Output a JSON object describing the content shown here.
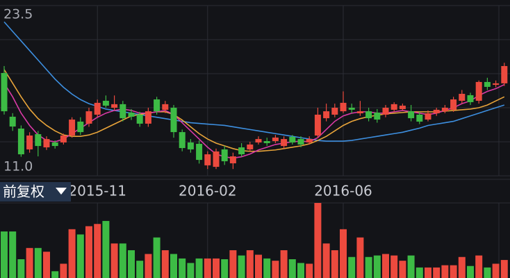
{
  "adjustment_label": "前复权",
  "chart_data": {
    "type": "candlestick",
    "categories": [
      null,
      null,
      null,
      null,
      null,
      null,
      null,
      null,
      null,
      null,
      null,
      "2015-11",
      null,
      null,
      null,
      null,
      null,
      null,
      null,
      null,
      null,
      null,
      null,
      null,
      "2016-02",
      null,
      null,
      null,
      null,
      null,
      null,
      null,
      null,
      null,
      null,
      null,
      null,
      null,
      null,
      null,
      "2016-06",
      null,
      null,
      null,
      null,
      null,
      null,
      null,
      null,
      null,
      null,
      null,
      null,
      null,
      null,
      null,
      null,
      null,
      null,
      null
    ],
    "open": [
      18.55,
      15.34,
      14.47,
      12.94,
      14.06,
      13.09,
      13.45,
      13.45,
      13.96,
      14.98,
      14.83,
      15.49,
      16.51,
      16.0,
      16.26,
      15.64,
      15.49,
      14.83,
      16.61,
      15.85,
      16.0,
      14.21,
      13.45,
      13.35,
      11.77,
      11.66,
      12.94,
      11.92,
      13.09,
      12.94,
      13.45,
      13.55,
      13.55,
      13.19,
      13.86,
      13.7,
      13.45,
      13.96,
      15.23,
      15.49,
      15.74,
      16.0,
      15.59,
      15.74,
      15.64,
      15.49,
      15.85,
      15.9,
      15.74,
      15.49,
      15.13,
      15.59,
      15.74,
      15.85,
      16.51,
      16.92,
      16.51,
      17.89,
      17.68,
      17.79
    ],
    "high": [
      19.06,
      15.6,
      14.7,
      14.2,
      14.3,
      13.9,
      13.6,
      14.1,
      15.3,
      15.3,
      16.0,
      16.6,
      16.9,
      16.9,
      16.5,
      15.9,
      15.7,
      16.0,
      16.8,
      16.5,
      16.2,
      14.4,
      13.7,
      13.6,
      12.8,
      13.0,
      13.2,
      12.7,
      13.4,
      13.5,
      13.9,
      13.8,
      14.0,
      13.9,
      14.0,
      13.9,
      13.9,
      16.0,
      16.3,
      16.3,
      17.2,
      16.3,
      16.5,
      16.0,
      15.9,
      16.2,
      16.4,
      16.3,
      16.2,
      15.7,
      15.8,
      16.0,
      16.2,
      16.8,
      17.3,
      17.1,
      18.0,
      18.2,
      18.0,
      19.3
    ],
    "low": [
      15.5,
      14.3,
      12.4,
      12.7,
      12.43,
      12.9,
      13.0,
      13.3,
      13.8,
      14.0,
      14.6,
      15.3,
      16.0,
      15.8,
      15.0,
      15.1,
      14.6,
      14.6,
      15.5,
      15.6,
      13.8,
      12.8,
      12.7,
      11.9,
      11.5,
      11.5,
      11.8,
      11.5,
      12.4,
      12.8,
      13.3,
      13.2,
      13.4,
      13.0,
      13.3,
      13.1,
      13.3,
      13.8,
      15.0,
      15.3,
      15.6,
      15.6,
      15.4,
      15.0,
      14.9,
      15.3,
      15.7,
      15.8,
      15.0,
      14.8,
      15.0,
      15.4,
      15.6,
      15.7,
      16.3,
      16.2,
      16.3,
      17.3,
      17.5,
      17.6
    ],
    "close": [
      15.74,
      14.62,
      12.58,
      13.96,
      13.19,
      13.7,
      13.19,
      13.96,
      15.13,
      14.21,
      15.74,
      16.36,
      16.15,
      16.26,
      15.23,
      15.34,
      14.83,
      15.74,
      15.74,
      16.26,
      14.21,
      13.04,
      12.94,
      12.17,
      12.58,
      12.79,
      12.07,
      12.43,
      12.58,
      13.3,
      13.7,
      13.4,
      13.81,
      13.7,
      13.45,
      13.3,
      13.7,
      15.49,
      15.74,
      16.0,
      16.36,
      15.85,
      15.74,
      15.23,
      15.13,
      16.0,
      16.26,
      16.15,
      15.23,
      14.98,
      15.59,
      15.85,
      16.0,
      16.61,
      17.02,
      16.41,
      17.89,
      17.53,
      17.79,
      19.06
    ],
    "up_color": "#ec4a3e",
    "down_color": "#3dbb45",
    "ma": [
      {
        "color": "#3d8fe0",
        "values": [
          22.3,
          21.6,
          20.9,
          20.2,
          19.5,
          18.8,
          18.1,
          17.5,
          17.0,
          16.6,
          16.3,
          16.1,
          15.9,
          15.8,
          15.7,
          15.6,
          15.5,
          15.4,
          15.3,
          15.2,
          15.1,
          15.0,
          14.9,
          14.85,
          14.8,
          14.75,
          14.7,
          14.6,
          14.5,
          14.4,
          14.3,
          14.2,
          14.1,
          14.0,
          13.9,
          13.8,
          13.7,
          13.6,
          13.55,
          13.55,
          13.55,
          13.6,
          13.7,
          13.8,
          13.9,
          14.0,
          14.1,
          14.2,
          14.35,
          14.5,
          14.7,
          14.8,
          14.9,
          15.0,
          15.2,
          15.4,
          15.6,
          15.8,
          16.0,
          16.2
        ]
      },
      {
        "color": "#e8a43a",
        "values": [
          18.8,
          17.8,
          16.8,
          15.9,
          15.2,
          14.7,
          14.3,
          14.0,
          13.9,
          13.9,
          14.0,
          14.2,
          14.5,
          14.8,
          15.1,
          15.4,
          15.5,
          15.6,
          15.7,
          15.7,
          15.5,
          15.1,
          14.6,
          14.1,
          13.7,
          13.4,
          13.2,
          13.0,
          12.85,
          12.8,
          12.8,
          12.85,
          12.9,
          13.0,
          13.1,
          13.2,
          13.35,
          13.6,
          13.9,
          14.3,
          14.7,
          15.0,
          15.2,
          15.35,
          15.45,
          15.55,
          15.6,
          15.65,
          15.7,
          15.7,
          15.7,
          15.7,
          15.75,
          15.8,
          15.85,
          15.9,
          16.0,
          16.2,
          16.5,
          16.8
        ]
      },
      {
        "color": "#d93aa6",
        "values": [
          17.8,
          16.8,
          15.6,
          14.7,
          14.0,
          13.6,
          13.5,
          13.7,
          14.1,
          14.5,
          14.9,
          15.3,
          15.6,
          15.8,
          15.9,
          15.8,
          15.6,
          15.6,
          15.7,
          15.8,
          15.5,
          14.9,
          14.3,
          13.7,
          13.1,
          12.6,
          12.4,
          12.3,
          12.4,
          12.6,
          12.9,
          13.1,
          13.3,
          13.4,
          13.5,
          13.55,
          13.5,
          13.8,
          14.4,
          15.0,
          15.4,
          15.6,
          15.7,
          15.7,
          15.6,
          15.6,
          15.7,
          15.8,
          15.7,
          15.6,
          15.5,
          15.6,
          15.8,
          16.0,
          16.3,
          16.5,
          16.9,
          17.2,
          17.4,
          17.7
        ]
      }
    ],
    "volume": [
      62,
      62,
      25,
      40,
      40,
      35,
      9,
      19,
      65,
      58,
      69,
      72,
      76,
      46,
      46,
      37,
      23,
      32,
      54,
      37,
      32,
      26,
      20,
      26,
      26,
      26,
      25,
      37,
      30,
      37,
      31,
      26,
      23,
      37,
      25,
      20,
      19,
      100,
      46,
      37,
      65,
      28,
      54,
      28,
      30,
      32,
      30,
      23,
      30,
      14,
      14,
      14,
      17,
      17,
      28,
      16,
      30,
      14,
      19,
      24
    ],
    "vlim": [
      0,
      100
    ],
    "ylim": [
      11,
      23.5
    ],
    "yticks": [
      {
        "value": 11,
        "label": "11.0"
      },
      23.5
    ],
    "ygrid": [
      13.5,
      16,
      18.5,
      21
    ]
  }
}
